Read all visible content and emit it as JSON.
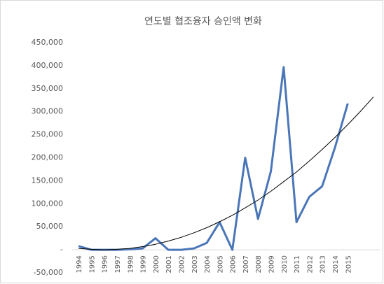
{
  "chart_data": {
    "type": "line",
    "title": "연도별 협조융자 승인액 변화",
    "categories": [
      "1994",
      "1995",
      "1996",
      "1997",
      "1998",
      "1999",
      "2000",
      "2001",
      "2002",
      "2003",
      "2004",
      "2005",
      "2006",
      "2007",
      "2008",
      "2009",
      "2010",
      "2011",
      "2012",
      "2013",
      "2014",
      "2015",
      null,
      null
    ],
    "series": [
      {
        "color": "#4a76b8",
        "width": 3,
        "values": [
          8000,
          0,
          0,
          0,
          1000,
          3000,
          25000,
          0,
          0,
          3000,
          15000,
          60000,
          0,
          200000,
          67000,
          170000,
          397000,
          60000,
          115000,
          138000,
          222000,
          318000,
          null,
          null
        ]
      },
      {
        "color": "#000000",
        "width": 1,
        "values": [
          3000,
          1000,
          0,
          1000,
          3000,
          7000,
          12000,
          19000,
          27000,
          37000,
          48000,
          61000,
          75000,
          91000,
          108000,
          127000,
          148000,
          169000,
          193000,
          218000,
          244000,
          272000,
          301000,
          332000
        ]
      }
    ],
    "ylim": [
      -50000,
      450000
    ],
    "yticks": [
      {
        "value": -50000,
        "label": "-50,000"
      },
      {
        "value": 0,
        "label": "-"
      },
      {
        "value": 50000,
        "label": "50,000"
      },
      {
        "value": 100000,
        "label": "100,000"
      },
      {
        "value": 150000,
        "label": "150,000"
      },
      {
        "value": 200000,
        "label": "200,000"
      },
      {
        "value": 250000,
        "label": "250,000"
      },
      {
        "value": 300000,
        "label": "300,000"
      },
      {
        "value": 350000,
        "label": "350,000"
      },
      {
        "value": 400000,
        "label": "400,000"
      },
      {
        "value": 450000,
        "label": "450,000"
      }
    ]
  }
}
